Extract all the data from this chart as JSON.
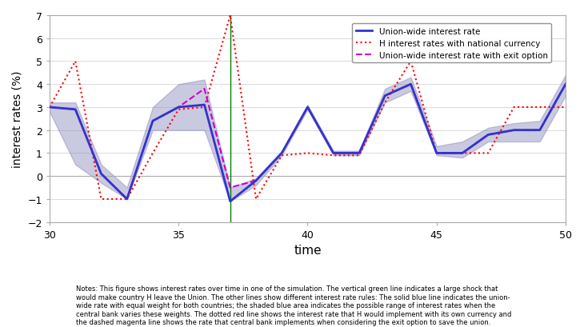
{
  "xlabel": "time",
  "ylabel": "interest rates (%)",
  "xlim": [
    30,
    50
  ],
  "ylim": [
    -2,
    7
  ],
  "xticks": [
    30,
    35,
    40,
    45,
    50
  ],
  "yticks": [
    -2,
    -1,
    0,
    1,
    2,
    3,
    4,
    5,
    6,
    7
  ],
  "green_line_x": 37,
  "blue_line_color": "#3333cc",
  "red_line_color": "#ff0000",
  "magenta_line_color": "#cc00cc",
  "shade_color": "#8888bb",
  "zero_line_color": "#aaaaaa",
  "time": [
    30,
    31,
    32,
    33,
    34,
    35,
    36,
    37,
    38,
    39,
    40,
    41,
    42,
    43,
    44,
    45,
    46,
    47,
    48,
    49,
    50
  ],
  "blue_line": [
    3.0,
    2.9,
    0.1,
    -1.0,
    2.4,
    3.0,
    3.1,
    -1.1,
    -0.2,
    1.0,
    3.0,
    1.0,
    1.0,
    3.5,
    4.0,
    1.0,
    1.0,
    1.8,
    2.0,
    2.0,
    4.0
  ],
  "red_line": [
    3.0,
    5.0,
    -1.0,
    -1.0,
    1.0,
    2.9,
    3.0,
    7.0,
    -1.0,
    0.9,
    1.0,
    0.9,
    0.9,
    3.2,
    5.0,
    1.0,
    1.0,
    1.0,
    3.0,
    3.0,
    3.0
  ],
  "magenta_line": [
    3.0,
    2.9,
    0.1,
    -1.0,
    2.4,
    3.0,
    3.8,
    -0.5,
    -0.2,
    1.0,
    3.0,
    1.0,
    1.0,
    3.5,
    4.0,
    1.0,
    1.0,
    1.8,
    2.0,
    2.0,
    4.0
  ],
  "blue_upper": [
    3.2,
    3.2,
    0.5,
    -0.5,
    3.0,
    4.0,
    4.2,
    -0.5,
    -0.1,
    1.1,
    3.1,
    1.1,
    1.1,
    3.8,
    4.3,
    1.3,
    1.5,
    2.1,
    2.3,
    2.4,
    4.4
  ],
  "blue_lower": [
    2.8,
    0.5,
    -0.3,
    -1.0,
    2.0,
    2.0,
    2.0,
    -1.1,
    -0.4,
    0.9,
    2.9,
    0.9,
    0.9,
    3.2,
    3.7,
    0.9,
    0.8,
    1.5,
    1.5,
    1.5,
    3.5
  ],
  "notes_line1": "Notes: This figure shows interest rates over time in one of the simulation. The vertical green line indicates a large shock that",
  "notes_line2": "would make country H leave the Union. The other lines show different interest rate rules: The solid blue line indicates the union-",
  "notes_line3": "wide rate with equal weight for both countries; the shaded blue area indicates the possible range of interest rates when the",
  "notes_line4": "central bank varies these weights. The dotted red line shows the interest rate that H would implement with its own currency and",
  "notes_line5": "the dashed magenta line shows the rate that central bank implements when considering the exit option to save the union.",
  "legend_labels": [
    "Union-wide interest rate",
    "H interest rates with national currency",
    "Union-wide interest rate with exit option"
  ]
}
